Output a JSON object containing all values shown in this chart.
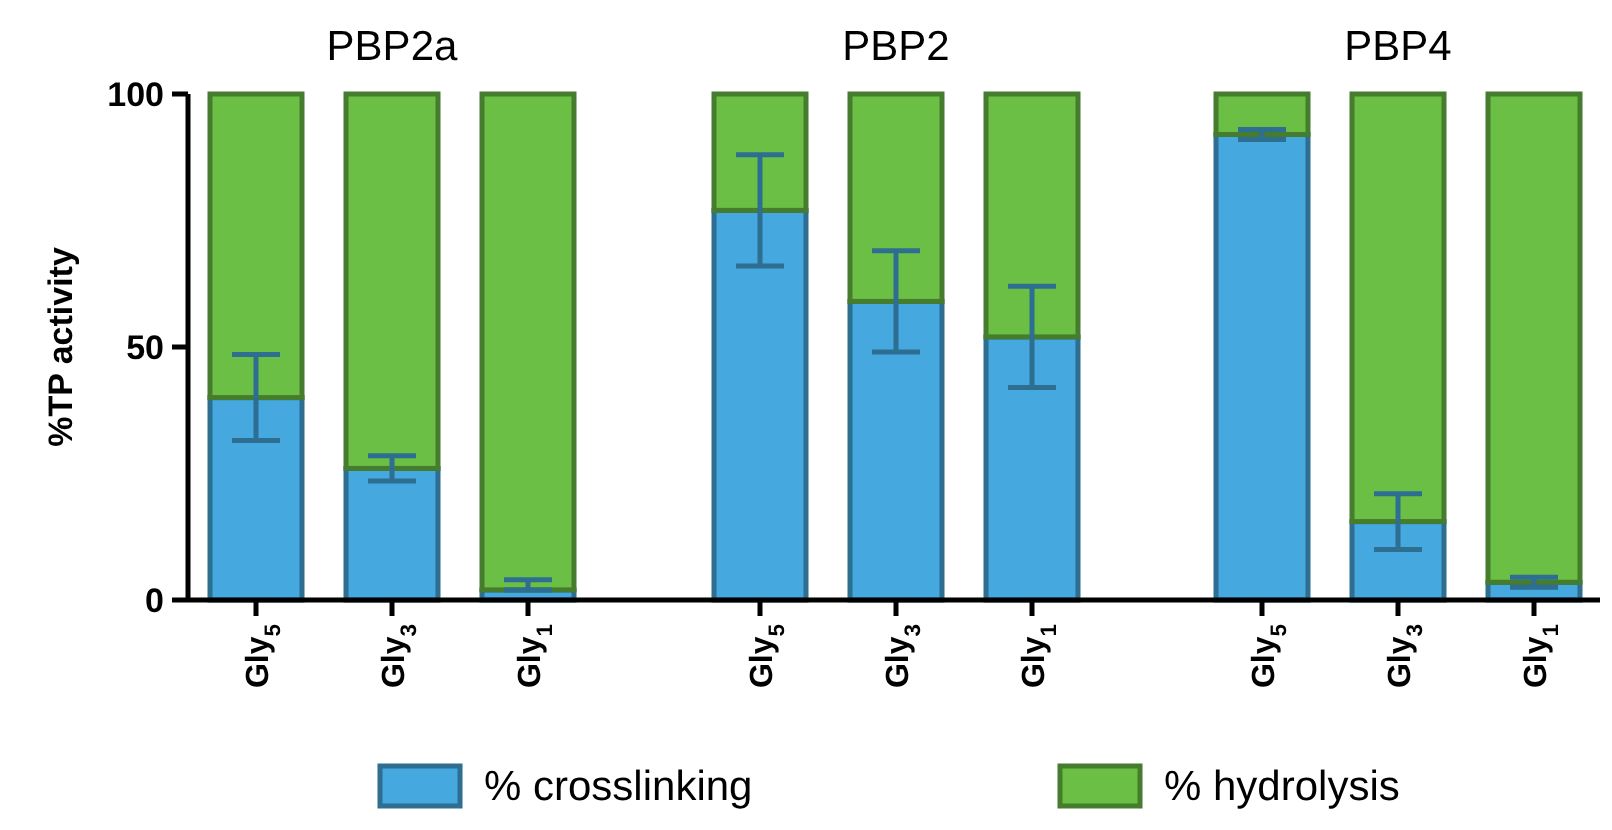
{
  "chart_data": [
    {
      "type": "bar",
      "title": "PBP2a",
      "ylabel": "%TP activity",
      "stacked": true,
      "categories": [
        "Gly$_{5}$",
        "Gly$_{3}$",
        "Gly$_{1}$"
      ],
      "ylim": [
        0,
        100
      ],
      "yticks": [
        0,
        50,
        100
      ],
      "legend": "bottom",
      "series": [
        {
          "name": "% crosslinking",
          "color": "#45a8df",
          "values": [
            40,
            26,
            2
          ],
          "errors": [
            8.5,
            2.5,
            [
              2,
              4
            ]
          ]
        },
        {
          "name": "% hydrolysis",
          "color": "#6bbf45",
          "values": [
            60,
            74,
            98
          ]
        }
      ]
    },
    {
      "type": "bar",
      "title": "PBP2",
      "stacked": true,
      "categories": [
        "Gly$_{5}$",
        "Gly$_{3}$",
        "Gly$_{1}$"
      ],
      "ylim": [
        0,
        100
      ],
      "tick_labels": "x",
      "series": [
        {
          "color": "#45a8df",
          "values": [
            77,
            59,
            52
          ],
          "errors": [
            11,
            10,
            10
          ]
        },
        {
          "color": "#6bbf45",
          "values": [
            23,
            41,
            48
          ]
        }
      ]
    },
    {
      "type": "bar",
      "title": "PBP4",
      "stacked": true,
      "categories": [
        "Gly$_{5}$",
        "Gly$_{3}$",
        "Gly$_{1}$"
      ],
      "ylim": [
        0,
        100
      ],
      "tick_labels": "x",
      "series": [
        {
          "color": "#45a8df",
          "values": [
            92,
            15.5,
            3.5
          ],
          "errors": [
            1,
            5.5,
            1
          ]
        },
        {
          "color": "#6bbf45",
          "values": [
            8,
            84.5,
            96.5
          ]
        }
      ]
    }
  ]
}
